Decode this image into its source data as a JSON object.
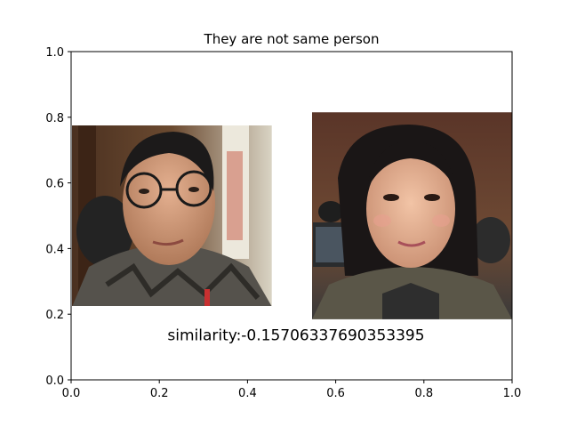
{
  "chart_data": {
    "type": "image-panel",
    "title": "They are not same person",
    "xlim": [
      0.0,
      1.0
    ],
    "ylim": [
      0.0,
      1.0
    ],
    "x_ticks": [
      "0.0",
      "0.2",
      "0.4",
      "0.6",
      "0.8",
      "1.0"
    ],
    "y_ticks": [
      "0.0",
      "0.2",
      "0.4",
      "0.6",
      "0.8",
      "1.0"
    ],
    "grid": false,
    "images": [
      {
        "name": "face-photo-left",
        "extent_x": [
          0.0,
          0.455
        ],
        "extent_y": [
          0.225,
          0.775
        ]
      },
      {
        "name": "face-photo-right",
        "extent_x": [
          0.545,
          1.0
        ],
        "extent_y": [
          0.185,
          0.815
        ]
      }
    ],
    "annotation": {
      "text": "similarity:-0.15706337690353395",
      "x": 0.51,
      "y": 0.12
    }
  },
  "colors": {
    "axes": "#000000",
    "background": "#ffffff"
  }
}
